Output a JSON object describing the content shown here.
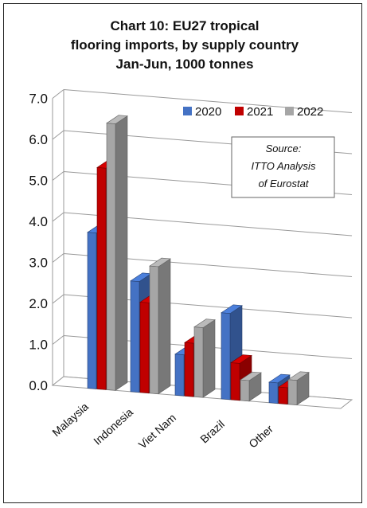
{
  "chart_data": {
    "type": "bar",
    "title_lines": [
      "Chart 10: EU27 tropical",
      "flooring imports, by supply country",
      "Jan-Jun, 1000 tonnes"
    ],
    "categories": [
      "Malaysia",
      "Indonesia",
      "Viet Nam",
      "Brazil",
      "Other"
    ],
    "series": [
      {
        "name": "2020",
        "color": "#4472C4",
        "values": [
          3.8,
          2.7,
          1.0,
          2.1,
          0.5
        ]
      },
      {
        "name": "2021",
        "color": "#C00000",
        "values": [
          5.4,
          2.2,
          1.3,
          0.9,
          0.4
        ]
      },
      {
        "name": "2022",
        "color": "#A6A6A6",
        "values": [
          6.5,
          3.1,
          1.7,
          0.5,
          0.6
        ]
      }
    ],
    "ylim": [
      0,
      7
    ],
    "yticks": [
      "0.0",
      "1.0",
      "2.0",
      "3.0",
      "4.0",
      "5.0",
      "6.0",
      "7.0"
    ],
    "grid": true,
    "legend_position": "top-right",
    "annotation_lines": [
      "Source:",
      "ITTO Analysis",
      "of Eurostat"
    ]
  }
}
